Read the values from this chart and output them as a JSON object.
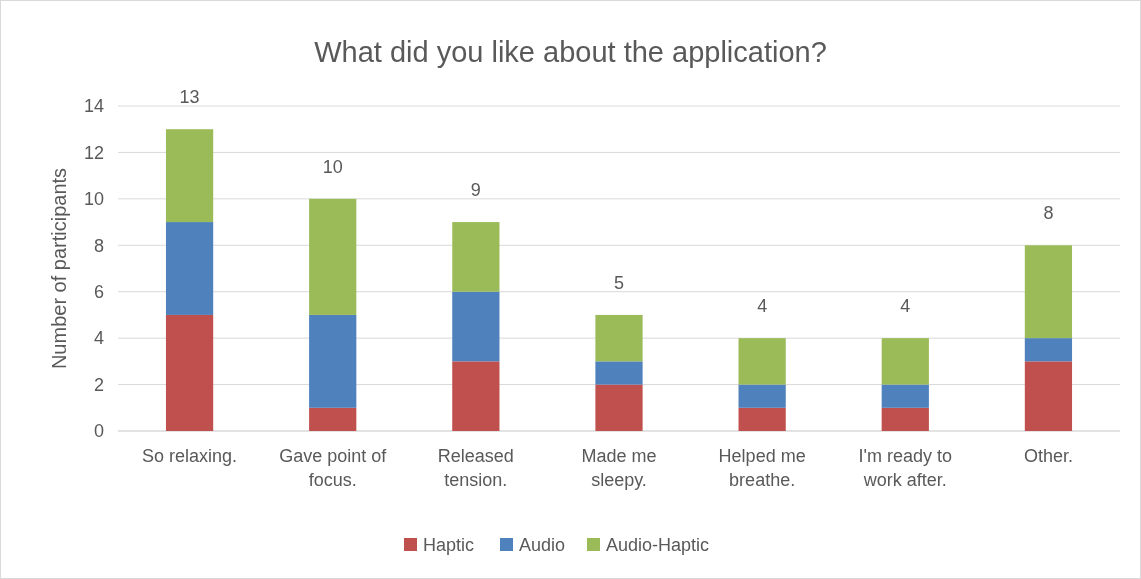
{
  "chart_data": {
    "type": "bar",
    "title": "What did you like about the application?",
    "ylabel": "Number of participants",
    "categories": [
      "So relaxing.",
      "Gave point of focus.",
      "Released tension.",
      "Made me sleepy.",
      "Helped me breathe.",
      "I'm ready to work after.",
      "Other."
    ],
    "series": [
      {
        "name": "Haptic",
        "color": "#c0504d",
        "values": [
          5,
          1,
          3,
          2,
          1,
          1,
          3
        ]
      },
      {
        "name": "Audio",
        "color": "#4f81bd",
        "values": [
          4,
          4,
          3,
          1,
          1,
          1,
          1
        ]
      },
      {
        "name": "Audio-Haptic",
        "color": "#9bbb59",
        "values": [
          4,
          5,
          3,
          2,
          2,
          2,
          4
        ]
      }
    ],
    "stacked": true,
    "ylim": [
      0,
      14
    ],
    "yticks": [
      0,
      2,
      4,
      6,
      8,
      10,
      12,
      14
    ],
    "grid": "y",
    "legend": "bottom",
    "totals": [
      "13",
      "10",
      "9",
      "5",
      "4",
      "4",
      "8"
    ]
  }
}
